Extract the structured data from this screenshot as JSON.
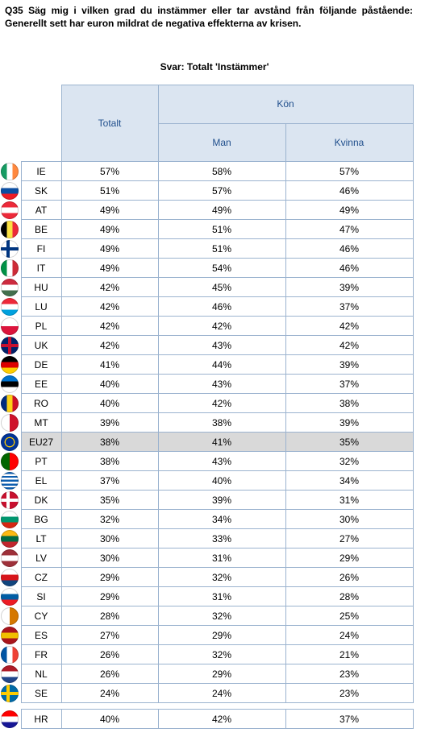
{
  "question": "Q35 Säg mig i vilken grad du instämmer eller tar avstånd från följande påstående: Generellt sett har euron mildrat de negativa effekterna av krisen.",
  "subtitle": "Svar: Totalt 'Instämmer'",
  "headers": {
    "total": "Totalt",
    "group": "Kön",
    "man": "Man",
    "woman": "Kvinna"
  },
  "chart_data": {
    "type": "table",
    "columns": [
      "Totalt",
      "Man",
      "Kvinna"
    ],
    "rows": [
      {
        "code": "IE",
        "values": [
          "57%",
          "58%",
          "57%"
        ],
        "flag": "ireland-flag-icon",
        "colors": [
          "#169b62",
          "#ffffff",
          "#ff883e"
        ]
      },
      {
        "code": "SK",
        "values": [
          "51%",
          "57%",
          "46%"
        ],
        "flag": "slovakia-flag-icon",
        "colors": [
          "#ffffff",
          "#0b4ea2",
          "#ee1c25"
        ]
      },
      {
        "code": "AT",
        "values": [
          "49%",
          "49%",
          "49%"
        ],
        "flag": "austria-flag-icon",
        "colors": [
          "#ed2939",
          "#ffffff",
          "#ed2939"
        ]
      },
      {
        "code": "BE",
        "values": [
          "49%",
          "51%",
          "47%"
        ],
        "flag": "belgium-flag-icon",
        "colors": [
          "#000000",
          "#fae042",
          "#ed2939"
        ]
      },
      {
        "code": "FI",
        "values": [
          "49%",
          "51%",
          "46%"
        ],
        "flag": "finland-flag-icon",
        "colors": [
          "#ffffff",
          "#003580"
        ]
      },
      {
        "code": "IT",
        "values": [
          "49%",
          "54%",
          "46%"
        ],
        "flag": "italy-flag-icon",
        "colors": [
          "#009246",
          "#ffffff",
          "#ce2b37"
        ]
      },
      {
        "code": "HU",
        "values": [
          "42%",
          "45%",
          "39%"
        ],
        "flag": "hungary-flag-icon",
        "colors": [
          "#cd2a3e",
          "#ffffff",
          "#436f4d"
        ]
      },
      {
        "code": "LU",
        "values": [
          "42%",
          "46%",
          "37%"
        ],
        "flag": "luxembourg-flag-icon",
        "colors": [
          "#ed2939",
          "#ffffff",
          "#00a1de"
        ]
      },
      {
        "code": "PL",
        "values": [
          "42%",
          "42%",
          "42%"
        ],
        "flag": "poland-flag-icon",
        "colors": [
          "#ffffff",
          "#dc143c"
        ]
      },
      {
        "code": "UK",
        "values": [
          "42%",
          "43%",
          "42%"
        ],
        "flag": "uk-flag-icon",
        "colors": [
          "#012169",
          "#ffffff",
          "#c8102e"
        ]
      },
      {
        "code": "DE",
        "values": [
          "41%",
          "44%",
          "39%"
        ],
        "flag": "germany-flag-icon",
        "colors": [
          "#000000",
          "#dd0000",
          "#ffce00"
        ]
      },
      {
        "code": "EE",
        "values": [
          "40%",
          "43%",
          "37%"
        ],
        "flag": "estonia-flag-icon",
        "colors": [
          "#0072ce",
          "#000000",
          "#ffffff"
        ]
      },
      {
        "code": "RO",
        "values": [
          "40%",
          "42%",
          "38%"
        ],
        "flag": "romania-flag-icon",
        "colors": [
          "#002b7f",
          "#fcd116",
          "#ce1126"
        ]
      },
      {
        "code": "MT",
        "values": [
          "39%",
          "38%",
          "39%"
        ],
        "flag": "malta-flag-icon",
        "colors": [
          "#ffffff",
          "#cf142b"
        ]
      },
      {
        "code": "EU27",
        "values": [
          "38%",
          "41%",
          "35%"
        ],
        "flag": "eu-flag-icon",
        "colors": [
          "#003399",
          "#ffcc00"
        ]
      },
      {
        "code": "PT",
        "values": [
          "38%",
          "43%",
          "32%"
        ],
        "flag": "portugal-flag-icon",
        "colors": [
          "#006600",
          "#ff0000"
        ]
      },
      {
        "code": "EL",
        "values": [
          "37%",
          "40%",
          "34%"
        ],
        "flag": "greece-flag-icon",
        "colors": [
          "#0d5eaf",
          "#ffffff"
        ]
      },
      {
        "code": "DK",
        "values": [
          "35%",
          "39%",
          "31%"
        ],
        "flag": "denmark-flag-icon",
        "colors": [
          "#c8102e",
          "#ffffff"
        ]
      },
      {
        "code": "BG",
        "values": [
          "32%",
          "34%",
          "30%"
        ],
        "flag": "bulgaria-flag-icon",
        "colors": [
          "#ffffff",
          "#00966e",
          "#d62612"
        ]
      },
      {
        "code": "LT",
        "values": [
          "30%",
          "33%",
          "27%"
        ],
        "flag": "lithuania-flag-icon",
        "colors": [
          "#fdb913",
          "#006a44",
          "#c1272d"
        ]
      },
      {
        "code": "LV",
        "values": [
          "30%",
          "31%",
          "29%"
        ],
        "flag": "latvia-flag-icon",
        "colors": [
          "#9e3039",
          "#ffffff",
          "#9e3039"
        ]
      },
      {
        "code": "CZ",
        "values": [
          "29%",
          "32%",
          "26%"
        ],
        "flag": "czech-flag-icon",
        "colors": [
          "#ffffff",
          "#d7141a",
          "#11457e"
        ]
      },
      {
        "code": "SI",
        "values": [
          "29%",
          "31%",
          "28%"
        ],
        "flag": "slovenia-flag-icon",
        "colors": [
          "#ffffff",
          "#005da4",
          "#ed1c24"
        ]
      },
      {
        "code": "CY",
        "values": [
          "28%",
          "32%",
          "25%"
        ],
        "flag": "cyprus-flag-icon",
        "colors": [
          "#ffffff",
          "#d57800"
        ]
      },
      {
        "code": "ES",
        "values": [
          "27%",
          "29%",
          "24%"
        ],
        "flag": "spain-flag-icon",
        "colors": [
          "#aa151b",
          "#f1bf00",
          "#aa151b"
        ]
      },
      {
        "code": "FR",
        "values": [
          "26%",
          "32%",
          "21%"
        ],
        "flag": "france-flag-icon",
        "colors": [
          "#0055a4",
          "#ffffff",
          "#ef4135"
        ]
      },
      {
        "code": "NL",
        "values": [
          "26%",
          "29%",
          "23%"
        ],
        "flag": "netherlands-flag-icon",
        "colors": [
          "#ae1c28",
          "#ffffff",
          "#21468b"
        ]
      },
      {
        "code": "SE",
        "values": [
          "24%",
          "24%",
          "23%"
        ],
        "flag": "sweden-flag-icon",
        "colors": [
          "#006aa7",
          "#fecc00"
        ]
      }
    ],
    "extra_row": {
      "code": "HR",
      "values": [
        "40%",
        "42%",
        "37%"
      ],
      "flag": "croatia-flag-icon",
      "colors": [
        "#ff0000",
        "#ffffff",
        "#171796"
      ]
    },
    "highlight": "EU27"
  }
}
